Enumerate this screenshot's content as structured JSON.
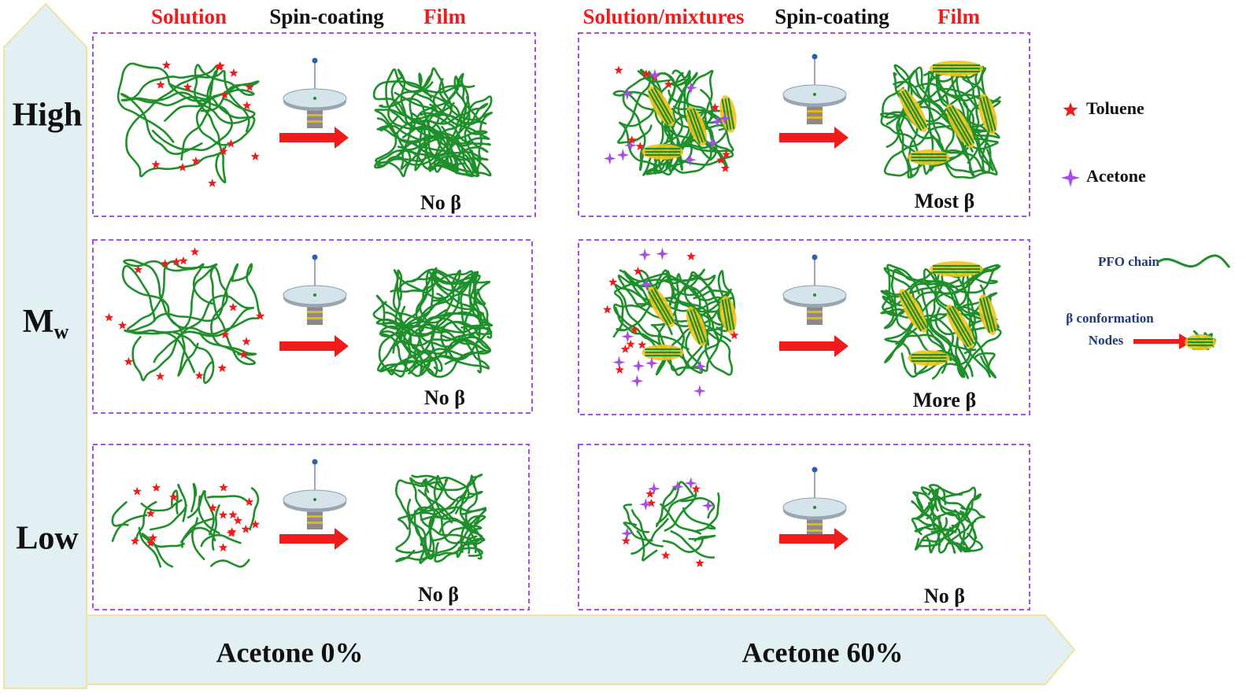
{
  "header": {
    "left": [
      "Solution",
      "Spin-coating",
      "Film"
    ],
    "right": [
      "Solution/mixtures",
      "Spin-coating",
      "Film"
    ]
  },
  "y_axis": {
    "high": "High",
    "mw_main": "M",
    "mw_sub": "w",
    "low": "Low"
  },
  "panels": [
    {
      "caption": "No β"
    },
    {
      "caption": "Most β"
    },
    {
      "caption": "No β"
    },
    {
      "caption": "More β"
    },
    {
      "caption": "No β"
    },
    {
      "caption": "No β"
    }
  ],
  "x_axis": [
    "Acetone 0%",
    "Acetone 60%"
  ],
  "legend": {
    "toluene": "Toluene",
    "acetone": "Acetone",
    "chain": "PFO chain",
    "beta_line1": "β conformation",
    "beta_line2": "Nodes"
  }
}
